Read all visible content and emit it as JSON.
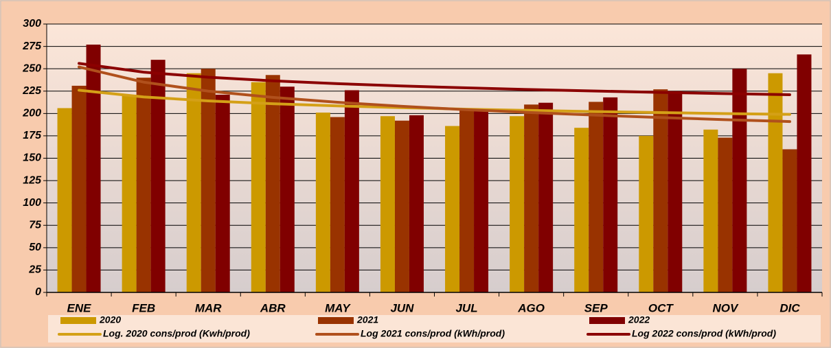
{
  "chart_data": {
    "type": "bar",
    "categories": [
      "ENE",
      "FEB",
      "MAR",
      "ABR",
      "MAY",
      "JUN",
      "JUL",
      "AGO",
      "SEP",
      "OCT",
      "NOV",
      "DIC"
    ],
    "series": [
      {
        "name": "2020",
        "type": "bar",
        "color": "#cc9900",
        "values": [
          206,
          221,
          245,
          235,
          201,
          197,
          186,
          197,
          184,
          175,
          182,
          245
        ]
      },
      {
        "name": "2021",
        "type": "bar",
        "color": "#993300",
        "values": [
          231,
          240,
          250,
          243,
          196,
          192,
          204,
          210,
          213,
          227,
          173,
          160
        ]
      },
      {
        "name": "2022",
        "type": "bar",
        "color": "#800000",
        "values": [
          277,
          260,
          221,
          230,
          226,
          198,
          204,
          212,
          218,
          225,
          250,
          266
        ]
      },
      {
        "name": "Log. 2020 cons/prod (Kwh/prod)",
        "type": "line",
        "color": "#d4a017",
        "values": [
          226,
          218.5,
          214.1,
          210.9,
          208.5,
          206.5,
          204.8,
          203.4,
          202.1,
          201.0,
          199.9,
          199.0
        ]
      },
      {
        "name": "Log 2021 cons/prod (kWh/prod)",
        "type": "line",
        "color": "#b0501c",
        "values": [
          252,
          235.0,
          225.0,
          218.0,
          212.5,
          208.0,
          204.2,
          201.0,
          198.1,
          195.5,
          193.1,
          191.0
        ]
      },
      {
        "name": "Log 2022 cons/prod (kWh/prod)",
        "type": "line",
        "color": "#8b0000",
        "values": [
          256,
          246.2,
          240.5,
          236.5,
          233.3,
          230.8,
          228.6,
          226.7,
          225.1,
          223.6,
          222.2,
          221.0
        ]
      }
    ],
    "ylim": [
      0,
      300
    ],
    "yticks": [
      0,
      25,
      50,
      75,
      100,
      125,
      150,
      175,
      200,
      225,
      250,
      275,
      300
    ],
    "grid": true
  }
}
